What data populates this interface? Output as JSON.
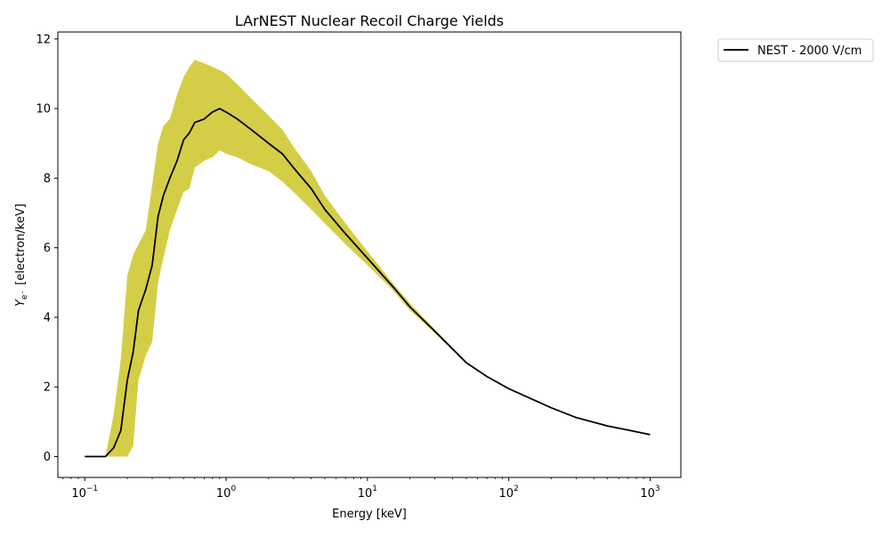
{
  "chart_data": {
    "type": "line",
    "title": "LArNEST Nuclear Recoil Charge Yields",
    "xlabel": "Energy [keV]",
    "ylabel_symbol": "Y",
    "ylabel_subscript": "e⁻",
    "ylabel_units": "[electron/keV]",
    "xscale": "log",
    "xlim": [
      0.0645,
      1650
    ],
    "ylim": [
      -0.6,
      12.2
    ],
    "xtick_values": [
      0.1,
      1,
      10,
      100,
      1000
    ],
    "xtick_bases": [
      "10",
      "10",
      "10",
      "10",
      "10"
    ],
    "xtick_exponents": [
      "−1",
      "0",
      "1",
      "2",
      "3"
    ],
    "ytick_values": [
      0,
      2,
      4,
      6,
      8,
      10,
      12
    ],
    "ytick_labels": [
      "0",
      "2",
      "4",
      "6",
      "8",
      "10",
      "12"
    ],
    "grid": false,
    "legend_position": "outside-top-right",
    "series": [
      {
        "name": "NEST - 2000 V/cm",
        "color": "#000000",
        "x": [
          0.1,
          0.14,
          0.16,
          0.18,
          0.2,
          0.22,
          0.24,
          0.27,
          0.3,
          0.33,
          0.36,
          0.4,
          0.45,
          0.5,
          0.55,
          0.6,
          0.7,
          0.8,
          0.9,
          1.0,
          1.2,
          1.5,
          2,
          2.5,
          3,
          4,
          5,
          7,
          10,
          15,
          20,
          30,
          50,
          70,
          100,
          200,
          300,
          500,
          700,
          1000
        ],
        "y": [
          0,
          0,
          0.25,
          0.75,
          2.2,
          3.0,
          4.2,
          4.8,
          5.5,
          6.9,
          7.5,
          8.0,
          8.5,
          9.1,
          9.3,
          9.6,
          9.7,
          9.9,
          10.0,
          9.9,
          9.7,
          9.4,
          9.0,
          8.7,
          8.3,
          7.7,
          7.1,
          6.4,
          5.7,
          4.9,
          4.3,
          3.6,
          2.7,
          2.3,
          1.95,
          1.4,
          1.12,
          0.88,
          0.76,
          0.63
        ]
      }
    ],
    "band": {
      "color": "#ccc527",
      "opacity": 0.85,
      "x": [
        0.1,
        0.14,
        0.16,
        0.18,
        0.2,
        0.22,
        0.24,
        0.27,
        0.3,
        0.33,
        0.36,
        0.4,
        0.45,
        0.5,
        0.55,
        0.6,
        0.7,
        0.8,
        0.9,
        1.0,
        1.2,
        1.5,
        2,
        2.5,
        3,
        4,
        5,
        7,
        10,
        15,
        20,
        30,
        50,
        70,
        100,
        200,
        300,
        500,
        700,
        1000
      ],
      "y_low": [
        0,
        0,
        0,
        0,
        0,
        0.3,
        2.2,
        2.9,
        3.3,
        5.0,
        5.7,
        6.5,
        7.1,
        7.6,
        7.7,
        8.3,
        8.5,
        8.6,
        8.8,
        8.7,
        8.6,
        8.4,
        8.2,
        7.9,
        7.6,
        7.1,
        6.7,
        6.1,
        5.5,
        4.8,
        4.2,
        3.55,
        2.68,
        2.28,
        1.94,
        1.39,
        1.11,
        0.87,
        0.75,
        0.62
      ],
      "y_high": [
        0,
        0,
        1.2,
        2.8,
        5.2,
        5.8,
        6.1,
        6.5,
        7.8,
        9.0,
        9.5,
        9.7,
        10.4,
        10.9,
        11.2,
        11.4,
        11.3,
        11.2,
        11.1,
        11.0,
        10.7,
        10.3,
        9.8,
        9.4,
        8.9,
        8.2,
        7.5,
        6.7,
        5.9,
        5.0,
        4.4,
        3.65,
        2.72,
        2.32,
        1.96,
        1.41,
        1.13,
        0.89,
        0.77,
        0.64
      ]
    }
  }
}
